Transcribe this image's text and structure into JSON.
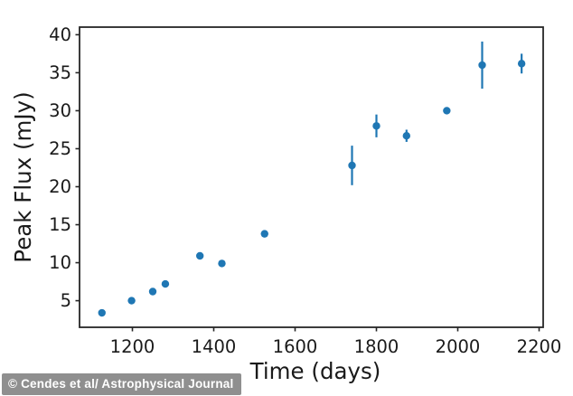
{
  "figure": {
    "credit": "© Cendes et al/ Astrophysical Journal",
    "background_color": "#ffffff",
    "spine_color": "#262626",
    "text_color": "#1a1a1a",
    "credit_bg_color": "#8f8f8f",
    "credit_text_color": "#ffffff"
  },
  "chart_data": {
    "type": "scatter",
    "title": "",
    "xlabel": "Time (days)",
    "ylabel": "Peak Flux (mJy)",
    "xlim": [
      1070,
      2210
    ],
    "ylim": [
      1.5,
      41.0
    ],
    "xticks": [
      1200,
      1400,
      1600,
      1800,
      2000,
      2200
    ],
    "yticks": [
      5,
      10,
      15,
      20,
      25,
      30,
      35,
      40
    ],
    "grid": false,
    "legend_position": "none",
    "marker": {
      "shape": "circle",
      "color": "#1f77b4",
      "radius_px": 4.2
    },
    "errorbar": {
      "color": "#1f77b4",
      "capsize": 0
    },
    "series": [
      {
        "name": "peak-flux-measurements",
        "points": [
          {
            "x": 1125,
            "y": 3.4,
            "yerr": 0.2
          },
          {
            "x": 1198,
            "y": 5.0,
            "yerr": 0.2
          },
          {
            "x": 1250,
            "y": 6.2,
            "yerr": 0.2
          },
          {
            "x": 1281,
            "y": 7.2,
            "yerr": 0.2
          },
          {
            "x": 1366,
            "y": 10.9,
            "yerr": 0.3
          },
          {
            "x": 1420,
            "y": 9.9,
            "yerr": 0.3
          },
          {
            "x": 1525,
            "y": 13.8,
            "yerr": 0.3
          },
          {
            "x": 1740,
            "y": 22.8,
            "yerr": 2.6
          },
          {
            "x": 1800,
            "y": 28.0,
            "yerr": 1.5
          },
          {
            "x": 1874,
            "y": 26.7,
            "yerr": 0.8
          },
          {
            "x": 1973,
            "y": 30.0,
            "yerr": 0.3
          },
          {
            "x": 2060,
            "y": 36.0,
            "yerr": 3.1
          },
          {
            "x": 2157,
            "y": 36.2,
            "yerr": 1.3
          }
        ]
      }
    ]
  }
}
